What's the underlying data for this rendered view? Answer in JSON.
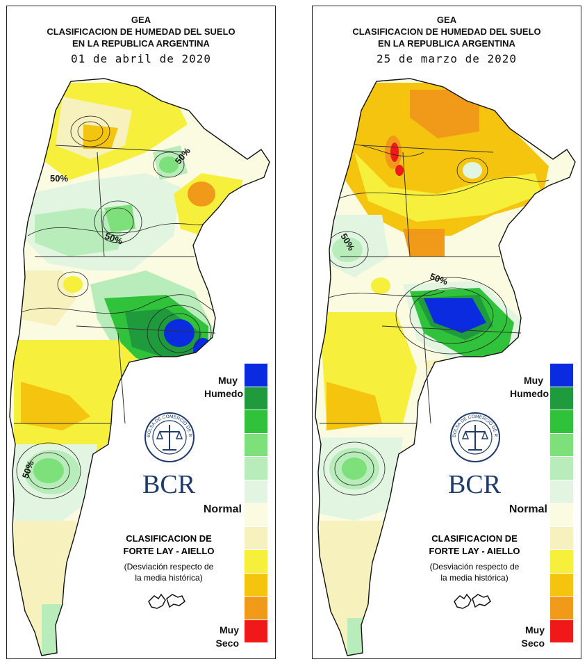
{
  "panels": [
    {
      "header": {
        "org": "GEA",
        "title_line1": "CLASIFICACION DE HUMEDAD DEL SUELO",
        "title_line2": "EN LA REPUBLICA ARGENTINA",
        "date": "01 de abril de 2020"
      },
      "contour_labels": [
        "50%",
        "50%",
        "50%",
        "50%"
      ],
      "legend": {
        "top_label_1": "Muy",
        "top_label_2": "Humedo",
        "mid_label": "Normal",
        "bottom_label_1": "Muy",
        "bottom_label_2": "Seco"
      },
      "logo_text": "BCR",
      "seal_text": "BOLSA DE COMERCIO DE ROSARIO",
      "classification_line1": "CLASIFICACION DE",
      "classification_line2": "FORTE LAY - AIELLO",
      "description_line1": "(Desviación respecto de",
      "description_line2": "la media histórica)"
    },
    {
      "header": {
        "org": "GEA",
        "title_line1": "CLASIFICACION DE HUMEDAD DEL SUELO",
        "title_line2": "EN LA REPUBLICA ARGENTINA",
        "date": "25 de marzo de 2020"
      },
      "contour_labels": [
        "50%",
        "50%"
      ],
      "legend": {
        "top_label_1": "Muy",
        "top_label_2": "Humedo",
        "mid_label": "Normal",
        "bottom_label_1": "Muy",
        "bottom_label_2": "Seco"
      },
      "logo_text": "BCR",
      "seal_text": "BOLSA DE COMERCIO DE ROSARIO",
      "classification_line1": "CLASIFICACION DE",
      "classification_line2": "FORTE LAY - AIELLO",
      "description_line1": "(Desviación respecto de",
      "description_line2": "la media histórica)"
    }
  ],
  "legend_colors": [
    "#0a2be0",
    "#1f9a3c",
    "#2fc23a",
    "#7ee07a",
    "#b9ecbb",
    "#e2f5e0",
    "#fbfbe2",
    "#f7f1bd",
    "#f6f03c",
    "#f5c40f",
    "#f19a1a",
    "#f01818"
  ]
}
